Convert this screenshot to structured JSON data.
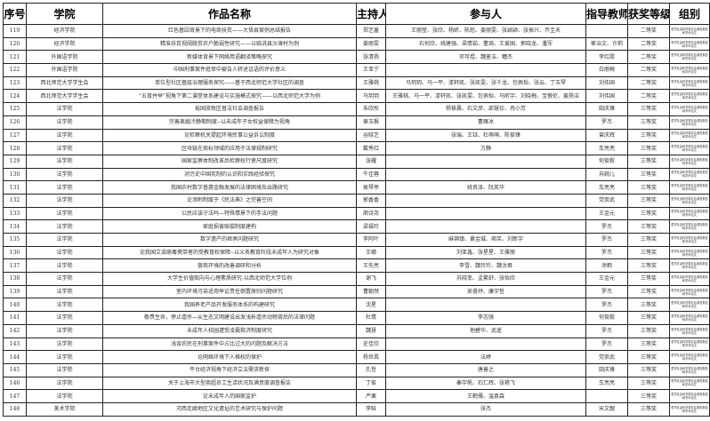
{
  "headers": [
    "序号",
    "学院",
    "作品名称",
    "主持人",
    "参与人",
    "指导教师",
    "获奖等级",
    "组别"
  ],
  "group_label": "哲学社会科学类社会调查报告和学术论文",
  "rows": [
    {
      "no": "119",
      "college": "经济学院",
      "title": "红色基因背景下的电商扶贫——大悟县案例总结报告",
      "host": "郑艺童",
      "members": "王丽莹、张欣、杨昕、陈彪、姜丽雯、张颖颖、张振兴、齐圭天",
      "advisor": "",
      "award": "二等奖"
    },
    {
      "no": "120",
      "college": "经济学院",
      "title": "精准扶贫视阈脱贫农户脆弱性研究——以临洮县沙滩村为例",
      "host": "姜丽雯",
      "members": "石何欣、姚建强、梁倩茹、董琦、王爱国、郭晓龙、潘军",
      "advisor": "崔治文、许莉",
      "award": "二等奖"
    },
    {
      "no": "121",
      "college": "外国语学院",
      "title": "新媒体背景下网络用语翻译策略探究",
      "host": "张清扬",
      "members": "邓可煜、魏鉴洁、糟杰",
      "advisor": "李红霞",
      "award": "二等奖"
    },
    {
      "no": "122",
      "college": "外国语学院",
      "title": "中国刑事案件庭审中被告人转述话语的评价意义",
      "host": "王亚宁",
      "members": "",
      "advisor": "白丽梅",
      "award": "二等奖"
    },
    {
      "no": "123",
      "college": "西北师范大学学生会",
      "title": "单位型社区基层治理服务探究——基于西北师范大学社区的调查",
      "host": "王雅桃",
      "members": "马玥玥、马一平、漆轩凯、张凯雯、张千龙、包佩怡、张云、丁玉琴",
      "advisor": "刘伟国",
      "award": "二等奖"
    },
    {
      "no": "124",
      "college": "西北师范大学学生会",
      "title": "“五育并举”视角下第二课堂体系建设与实施模式探究——以西北师范大学为例",
      "host": "马玥玥",
      "members": "王雅桃、马一平、漆轩凯、张凯雯、包佩怡、马昕宇、刘晓梅、宝傲伦、姜扬洁",
      "advisor": "刘伟国",
      "award": "二等奖"
    },
    {
      "no": "125",
      "college": "法学院",
      "title": "裕固族牧区普法社会调查报告",
      "host": "朱欣彤",
      "members": "杨筱晨、石文彦、邵慧珍、冉小芳",
      "advisor": "田庆锋",
      "award": "三等奖"
    },
    {
      "no": "126",
      "college": "法学院",
      "title": "完善离婚冷静期制度--以未成年子女权益保障为视角",
      "host": "章玉枫",
      "members": "曹雁冰",
      "advisor": "罗杰",
      "award": "三等奖"
    },
    {
      "no": "127",
      "college": "法学院",
      "title": "论检察机关提起环境民事公益诉讼制度",
      "host": "谷晓艺",
      "members": "张瑞、王钰、杜萌萌、陈俊锋",
      "advisor": "曾庆辉",
      "award": "三等奖"
    },
    {
      "no": "128",
      "college": "法学院",
      "title": "区块链在商标领域的应用于法律规制研究",
      "host": "戴秀红",
      "members": "方静",
      "advisor": "车亮亮",
      "award": "三等奖"
    },
    {
      "no": "129",
      "college": "法学院",
      "title": "国家监察体制改革后检察权行使尺度研究",
      "host": "张耀",
      "members": "",
      "advisor": "何俊毅",
      "award": "三等奖"
    },
    {
      "no": "130",
      "college": "法学院",
      "title": "对历史中国宪制的认识和实践经验探究",
      "host": "牛佳蓉",
      "members": "",
      "advisor": "苏婉儿",
      "award": "三等奖"
    },
    {
      "no": "131",
      "college": "法学院",
      "title": "我国农村数字普惠金融发展的法律困境及出路研究",
      "host": "侯琴亭",
      "members": "姚良泽、阮英华",
      "advisor": "车亮亮",
      "award": "三等奖"
    },
    {
      "no": "132",
      "college": "法学院",
      "title": "论添附制度于《民法典》之完善空间",
      "host": "郭香香",
      "members": "",
      "advisor": "党崇武",
      "award": "三等奖"
    },
    {
      "no": "133",
      "college": "法学院",
      "title": "公民应该守法吗—特殊情景下的手法问题",
      "host": "蔺诗尧",
      "members": "",
      "advisor": "王金元",
      "award": "三等奖"
    },
    {
      "no": "134",
      "college": "法学院",
      "title": "家庭损害赔偿制度建构",
      "host": "梁福玲",
      "members": "",
      "advisor": "罗杰",
      "award": "三等奖"
    },
    {
      "no": "135",
      "college": "法学院",
      "title": "数字遗产的继承问题研究",
      "host": "李阿叶",
      "members": "麻锦镇、黄金城、蔺芙、刘新宇",
      "advisor": "罗杰",
      "award": "三等奖"
    },
    {
      "no": "136",
      "college": "法学院",
      "title": "论我国艾滋病毒携带者的受教育权保障--以义务教育阶段未成年人为研究对象",
      "host": "王娜",
      "members": "刘亚鑫、张星星、王雅丽",
      "advisor": "罗杰",
      "award": "三等奖"
    },
    {
      "no": "137",
      "college": "法学院",
      "title": "营商环境的改善调研和分析",
      "host": "王先亮",
      "members": "李雪、魏玲玲、魏汶君",
      "advisor": "涂鹤",
      "award": "三等奖"
    },
    {
      "no": "138",
      "college": "法学院",
      "title": "大学生价值取向与心理素质研究-以西北师范大学位例",
      "host": "谢飞",
      "members": "苏晓菲、孟繁舒、张怡欣",
      "advisor": "王金元",
      "award": "三等奖"
    },
    {
      "no": "139",
      "college": "法学院",
      "title": "室内环境污染适用举证责任倒置原则问题研究",
      "host": "曹朝然",
      "members": "吴睿抒、康宇哲",
      "advisor": "罗杰",
      "award": "三等奖"
    },
    {
      "no": "140",
      "college": "法学院",
      "title": "我国养老产品开发服务体系的构建研究",
      "host": "沈星",
      "members": "",
      "advisor": "罗杰",
      "award": "三等奖"
    },
    {
      "no": "141",
      "college": "法学院",
      "title": "敬畏生命，停止虐杀—从生态文明建设出发浅析虐杀动物背后的法律问题",
      "host": "杜倩",
      "members": "李志强",
      "advisor": "何俊毅",
      "award": "三等奖"
    },
    {
      "no": "142",
      "college": "法学院",
      "title": "未成年人校园遭受凌霸救济制度研究",
      "host": "魏慧",
      "members": "他碧华、武遥",
      "advisor": "罗杰",
      "award": "三等奖"
    },
    {
      "no": "143",
      "college": "法学院",
      "title": "浅谈农民在刑事案件中占比过大的问题及解决方法",
      "host": "史佳欣",
      "members": "",
      "advisor": "罗杰",
      "award": "三等奖"
    },
    {
      "no": "144",
      "college": "法学院",
      "title": "论网络环境下人格权的保护",
      "host": "杨世昌",
      "members": "法婷",
      "advisor": "党崇武",
      "award": "三等奖"
    },
    {
      "no": "145",
      "college": "法学院",
      "title": "平台经济视角下经济立法需求新探",
      "host": "孔哲",
      "members": "唐善之",
      "advisor": "田庆锋",
      "award": "三等奖"
    },
    {
      "no": "146",
      "college": "法学院",
      "title": "关于上海市大型商超员工生活状况及满意度调查报告",
      "host": "丁俊",
      "members": "秦宇帆、石仁辉、张艳飞",
      "advisor": "车亮亮",
      "award": "三等奖"
    },
    {
      "no": "147",
      "college": "法学院",
      "title": "论未成年人的国家监护",
      "host": "严栗",
      "members": "王鹤儒、温袁森",
      "advisor": "",
      "award": "三等奖"
    },
    {
      "no": "148",
      "college": "美术学院",
      "title": "河西走廊地区文化遗址的艺术研究与保护问题",
      "host": "李晗",
      "members": "张杰",
      "advisor": "宋文靓",
      "award": "三等奖"
    }
  ]
}
